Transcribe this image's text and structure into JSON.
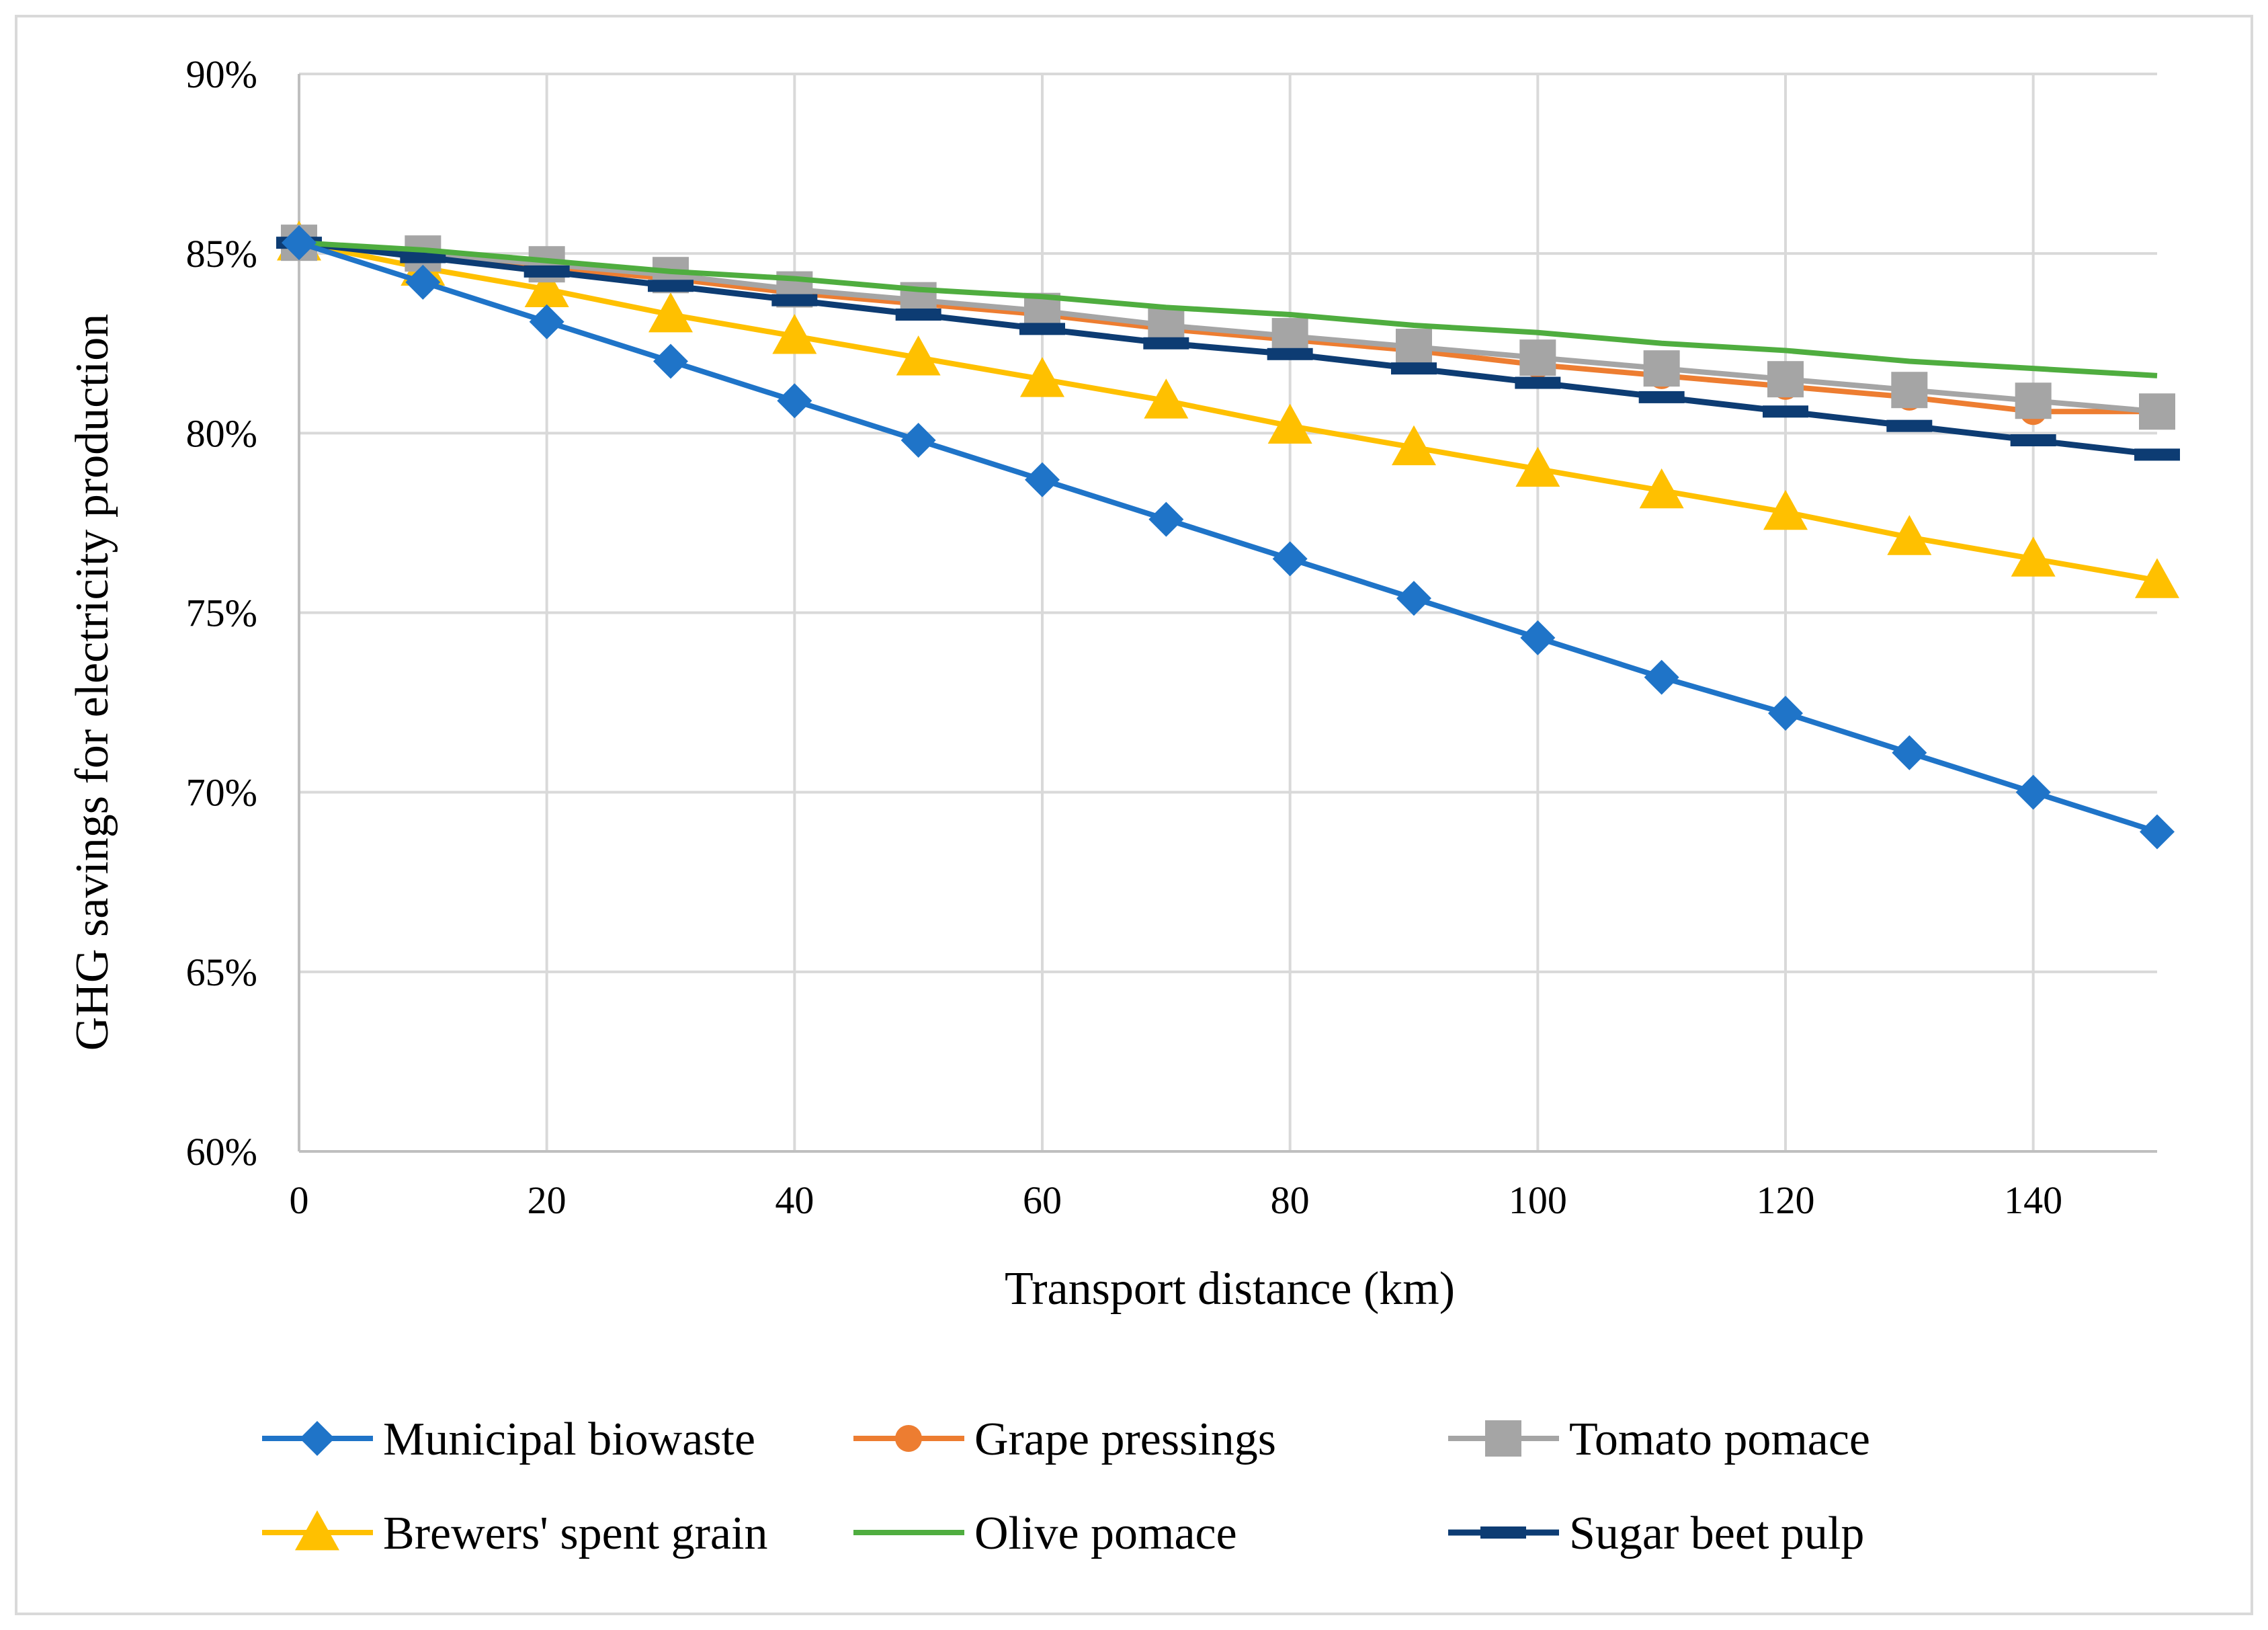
{
  "chart_data": {
    "type": "line",
    "title": "",
    "xlabel": "Transport distance (km)",
    "ylabel": "GHG savings for electricity production",
    "x": [
      0,
      10,
      20,
      30,
      40,
      50,
      60,
      70,
      80,
      90,
      100,
      110,
      120,
      130,
      140,
      150
    ],
    "xlim": [
      0,
      150
    ],
    "ylim": [
      60,
      90
    ],
    "x_ticks": [
      "0",
      "20",
      "40",
      "60",
      "80",
      "100",
      "120",
      "140"
    ],
    "x_tick_values": [
      0,
      20,
      40,
      60,
      80,
      100,
      120,
      140
    ],
    "y_ticks": [
      "60%",
      "65%",
      "70%",
      "75%",
      "80%",
      "85%",
      "90%"
    ],
    "y_tick_values": [
      60,
      65,
      70,
      75,
      80,
      85,
      90
    ],
    "grid": true,
    "legend_position": "bottom",
    "series": [
      {
        "name": "Municipal biowaste",
        "color": "#1f74c8",
        "marker": "diamond",
        "values": [
          85.3,
          84.2,
          83.1,
          82.0,
          80.9,
          79.8,
          78.7,
          77.6,
          76.5,
          75.4,
          74.3,
          73.2,
          72.2,
          71.1,
          70.0,
          68.9
        ]
      },
      {
        "name": "Grape pressings",
        "color": "#ed7d31",
        "marker": "circle",
        "values": [
          85.3,
          84.9,
          84.6,
          84.3,
          83.9,
          83.6,
          83.3,
          82.9,
          82.6,
          82.3,
          81.9,
          81.6,
          81.3,
          81.0,
          80.6,
          80.6
        ]
      },
      {
        "name": "Tomato pomace",
        "color": "#a5a5a5",
        "marker": "square",
        "values": [
          85.3,
          85.0,
          84.7,
          84.4,
          84.0,
          83.7,
          83.4,
          83.0,
          82.7,
          82.4,
          82.1,
          81.8,
          81.5,
          81.2,
          80.9,
          80.6
        ]
      },
      {
        "name": "Brewers' spent grain",
        "color": "#ffc000",
        "marker": "triangle",
        "values": [
          85.3,
          84.6,
          84.0,
          83.3,
          82.7,
          82.1,
          81.5,
          80.9,
          80.2,
          79.6,
          79.0,
          78.4,
          77.8,
          77.1,
          76.5,
          75.9
        ]
      },
      {
        "name": "Olive pomace",
        "color": "#4fad3f",
        "marker": "none",
        "values": [
          85.3,
          85.1,
          84.8,
          84.5,
          84.3,
          84.0,
          83.8,
          83.5,
          83.3,
          83.0,
          82.8,
          82.5,
          82.3,
          82.0,
          81.8,
          81.6
        ]
      },
      {
        "name": "Sugar beet pulp",
        "color": "#0d3c73",
        "marker": "dash",
        "values": [
          85.3,
          84.9,
          84.5,
          84.1,
          83.7,
          83.3,
          82.9,
          82.5,
          82.2,
          81.8,
          81.4,
          81.0,
          80.6,
          80.2,
          79.8,
          79.4
        ]
      }
    ]
  }
}
